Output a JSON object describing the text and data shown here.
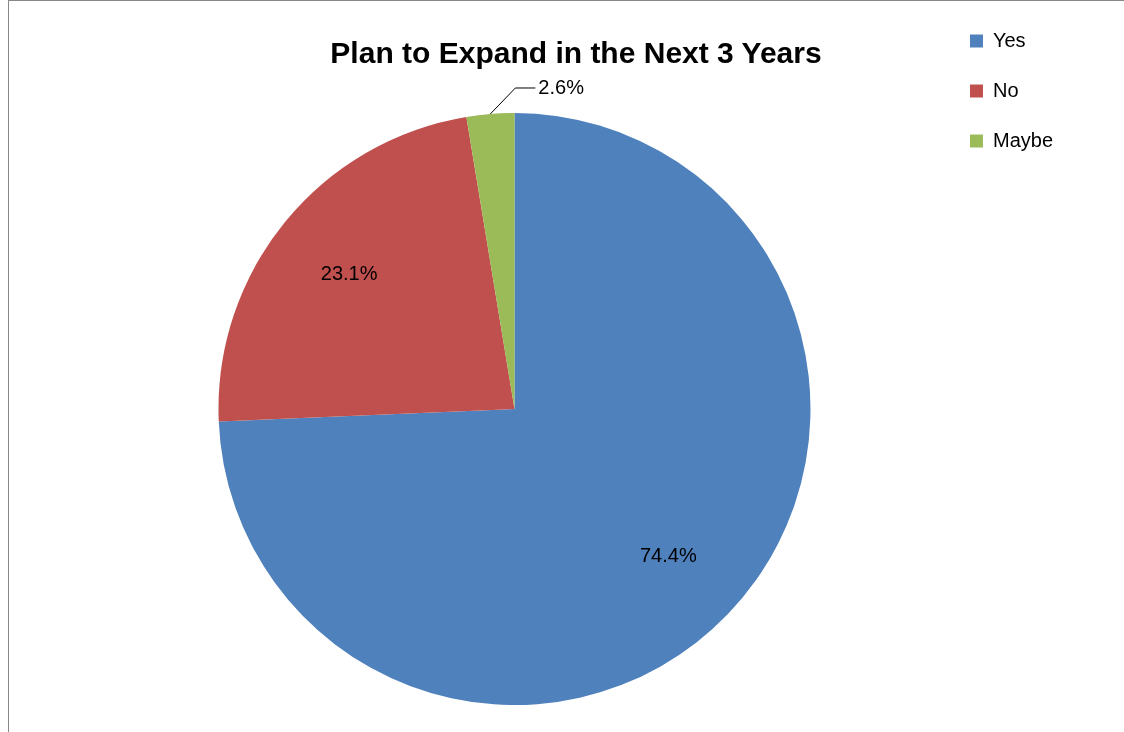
{
  "chart_data": {
    "type": "pie",
    "title": "Plan to Expand in the Next 3 Years",
    "categories": [
      "Yes",
      "No",
      "Maybe"
    ],
    "values": [
      74.4,
      23.1,
      2.6
    ],
    "colors": [
      "#4f81bd",
      "#c0504d",
      "#9bbb59"
    ],
    "value_labels": [
      "74.4%",
      "23.1%",
      "2.6%"
    ],
    "legend": "top right"
  }
}
